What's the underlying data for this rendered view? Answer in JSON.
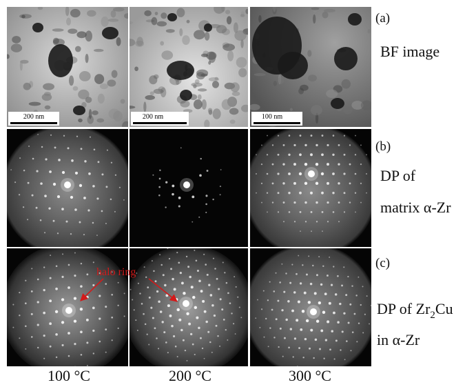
{
  "figure": {
    "rows": [
      {
        "tag": "(a)",
        "label_lines": [
          [
            "BF image"
          ]
        ]
      },
      {
        "tag": "(b)",
        "label_lines": [
          [
            "DP of"
          ],
          [
            "matrix α-Zr"
          ]
        ]
      },
      {
        "tag": "(c)",
        "label_lines": [
          [
            "DP of Zr",
            "2",
            "Cu"
          ],
          [
            "in α-Zr"
          ]
        ]
      }
    ],
    "scale_bars": [
      "200 nm",
      "200 nm",
      "100 nm"
    ],
    "annotation": "halo ring",
    "columns": [
      "100 °C",
      "200 °C",
      "300 °C"
    ]
  }
}
